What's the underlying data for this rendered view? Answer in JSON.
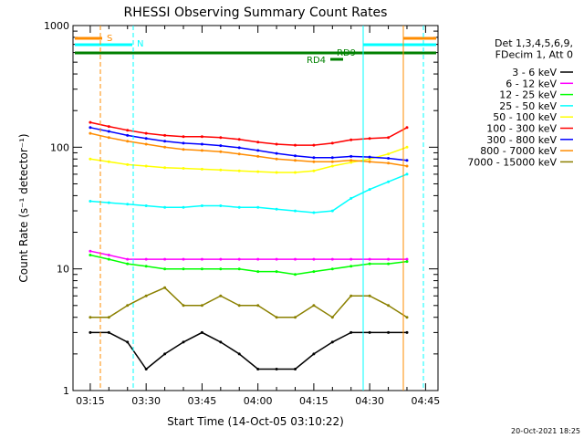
{
  "chart_data": {
    "type": "line",
    "title": "RHESSI Observing Summary Count Rates",
    "xlabel": "Start Time (14-Oct-05 03:10:22)",
    "ylabel": "Count Rate (s⁻¹ detector⁻¹)",
    "y_scale": "log",
    "ylim": [
      1,
      1000
    ],
    "xlim_minutes": [
      "03:10:22",
      "04:48:20"
    ],
    "x_ticks": [
      "03:15",
      "03:30",
      "03:45",
      "04:00",
      "04:15",
      "04:30",
      "04:45"
    ],
    "y_ticks": [
      "1",
      "10",
      "100",
      "1000"
    ],
    "legend_header": [
      "Det 1,3,4,5,6,9,",
      "FDecim 1, Att 0"
    ],
    "legend_position": "right",
    "series": [
      {
        "name": "3 - 6 keV",
        "color": "#000000",
        "x": [
          "03:15",
          "03:20",
          "03:25",
          "03:30",
          "03:35",
          "03:40",
          "03:45",
          "03:50",
          "03:55",
          "04:00",
          "04:05",
          "04:10",
          "04:15",
          "04:20",
          "04:25",
          "04:30",
          "04:35",
          "04:40"
        ],
        "values": [
          3,
          3,
          2.5,
          1.5,
          2,
          2.5,
          3,
          2.5,
          2,
          1.5,
          1.5,
          1.5,
          2,
          2.5,
          3,
          3,
          3,
          3
        ]
      },
      {
        "name": "6 - 12 keV",
        "color": "#ff00ff",
        "x": [
          "03:15",
          "03:20",
          "03:25",
          "03:30",
          "03:35",
          "03:40",
          "03:45",
          "03:50",
          "03:55",
          "04:00",
          "04:05",
          "04:10",
          "04:15",
          "04:20",
          "04:25",
          "04:30",
          "04:35",
          "04:40"
        ],
        "values": [
          14,
          13,
          12,
          12,
          12,
          12,
          12,
          12,
          12,
          12,
          12,
          12,
          12,
          12,
          12,
          12,
          12,
          12
        ]
      },
      {
        "name": "12 - 25 keV",
        "color": "#00ff00",
        "x": [
          "03:15",
          "03:20",
          "03:25",
          "03:30",
          "03:35",
          "03:40",
          "03:45",
          "03:50",
          "03:55",
          "04:00",
          "04:05",
          "04:10",
          "04:15",
          "04:20",
          "04:25",
          "04:30",
          "04:35",
          "04:40"
        ],
        "values": [
          13,
          12,
          11,
          10.5,
          10,
          10,
          10,
          10,
          10,
          9.5,
          9.5,
          9,
          9.5,
          10,
          10.5,
          11,
          11,
          11.5
        ]
      },
      {
        "name": "25 - 50 keV",
        "color": "#00ffff",
        "x": [
          "03:15",
          "03:20",
          "03:25",
          "03:30",
          "03:35",
          "03:40",
          "03:45",
          "03:50",
          "03:55",
          "04:00",
          "04:05",
          "04:10",
          "04:15",
          "04:20",
          "04:25",
          "04:30",
          "04:35",
          "04:40"
        ],
        "values": [
          36,
          35,
          34,
          33,
          32,
          32,
          33,
          33,
          32,
          32,
          31,
          30,
          29,
          30,
          38,
          45,
          52,
          60
        ]
      },
      {
        "name": "50 - 100 keV",
        "color": "#ffff00",
        "x": [
          "03:15",
          "03:20",
          "03:25",
          "03:30",
          "03:35",
          "03:40",
          "03:45",
          "03:50",
          "03:55",
          "04:00",
          "04:05",
          "04:10",
          "04:15",
          "04:20",
          "04:25",
          "04:30",
          "04:35",
          "04:40"
        ],
        "values": [
          80,
          76,
          72,
          70,
          68,
          67,
          66,
          65,
          64,
          63,
          62,
          62,
          64,
          70,
          75,
          80,
          88,
          100
        ]
      },
      {
        "name": "100 - 300 keV",
        "color": "#ff0000",
        "x": [
          "03:15",
          "03:20",
          "03:25",
          "03:30",
          "03:35",
          "03:40",
          "03:45",
          "03:50",
          "03:55",
          "04:00",
          "04:05",
          "04:10",
          "04:15",
          "04:20",
          "04:25",
          "04:30",
          "04:35",
          "04:40"
        ],
        "values": [
          160,
          148,
          138,
          130,
          125,
          122,
          122,
          120,
          116,
          110,
          106,
          104,
          104,
          108,
          115,
          118,
          120,
          145
        ]
      },
      {
        "name": "300 - 800 keV",
        "color": "#0000ff",
        "x": [
          "03:15",
          "03:20",
          "03:25",
          "03:30",
          "03:35",
          "03:40",
          "03:45",
          "03:50",
          "03:55",
          "04:00",
          "04:05",
          "04:10",
          "04:15",
          "04:20",
          "04:25",
          "04:30",
          "04:35",
          "04:40"
        ],
        "values": [
          145,
          135,
          125,
          118,
          112,
          108,
          106,
          103,
          99,
          94,
          89,
          85,
          82,
          82,
          84,
          83,
          81,
          78
        ]
      },
      {
        "name": "800 - 7000 keV",
        "color": "#ff8c00",
        "x": [
          "03:15",
          "03:20",
          "03:25",
          "03:30",
          "03:35",
          "03:40",
          "03:45",
          "03:50",
          "03:55",
          "04:00",
          "04:05",
          "04:10",
          "04:15",
          "04:20",
          "04:25",
          "04:30",
          "04:35",
          "04:40"
        ],
        "values": [
          130,
          120,
          112,
          106,
          100,
          96,
          94,
          92,
          88,
          84,
          80,
          78,
          76,
          76,
          78,
          76,
          74,
          70
        ]
      },
      {
        "name": "7000 - 15000 keV",
        "color": "#8b8000",
        "x": [
          "03:15",
          "03:20",
          "03:25",
          "03:30",
          "03:35",
          "03:40",
          "03:45",
          "03:50",
          "03:55",
          "04:00",
          "04:05",
          "04:10",
          "04:15",
          "04:20",
          "04:25",
          "04:30",
          "04:35",
          "04:40"
        ],
        "values": [
          4,
          4,
          5,
          6,
          7,
          5,
          5,
          6,
          5,
          5,
          4,
          4,
          5,
          4,
          6,
          6,
          5,
          4
        ]
      }
    ],
    "annotations": [
      {
        "label": "S",
        "color": "#ff8c00"
      },
      {
        "label": "N",
        "color": "#00ffff"
      },
      {
        "label": "RD4",
        "color": "#008000"
      },
      {
        "label": "RD9",
        "color": "#008000"
      }
    ],
    "footer_date": "20-Oct-2021 18:25"
  }
}
